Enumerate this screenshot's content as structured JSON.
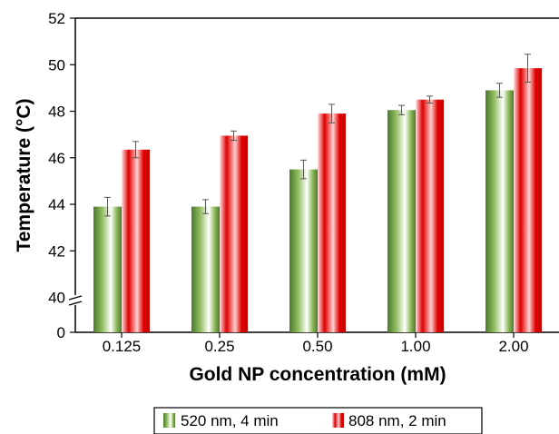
{
  "chart_data": {
    "type": "bar",
    "categories": [
      "0.125",
      "0.25",
      "0.50",
      "1.00",
      "2.00"
    ],
    "series": [
      {
        "name": "520 nm, 4 min",
        "values": [
          43.9,
          43.9,
          45.5,
          48.05,
          48.9
        ],
        "errors": [
          0.4,
          0.3,
          0.4,
          0.2,
          0.3
        ]
      },
      {
        "name": "808 nm, 2 min",
        "values": [
          46.35,
          46.95,
          47.9,
          48.5,
          49.85
        ],
        "errors": [
          0.35,
          0.2,
          0.4,
          0.15,
          0.6
        ]
      }
    ],
    "xlabel": "Gold NP concentration (mM)",
    "ylabel": "Temperature (°C)",
    "y_ticks": [
      "0",
      "40",
      "42",
      "44",
      "46",
      "48",
      "50",
      "52"
    ],
    "y_break": true,
    "ylim": [
      38.5,
      52
    ],
    "legend_position": "bottom-center",
    "grid": false,
    "colors": {
      "series_0_dark": "#4a7a2c",
      "series_0_mid": "#8fbb5e",
      "series_1_dark": "#e00000",
      "series_1_light": "#ffe3e3"
    }
  }
}
